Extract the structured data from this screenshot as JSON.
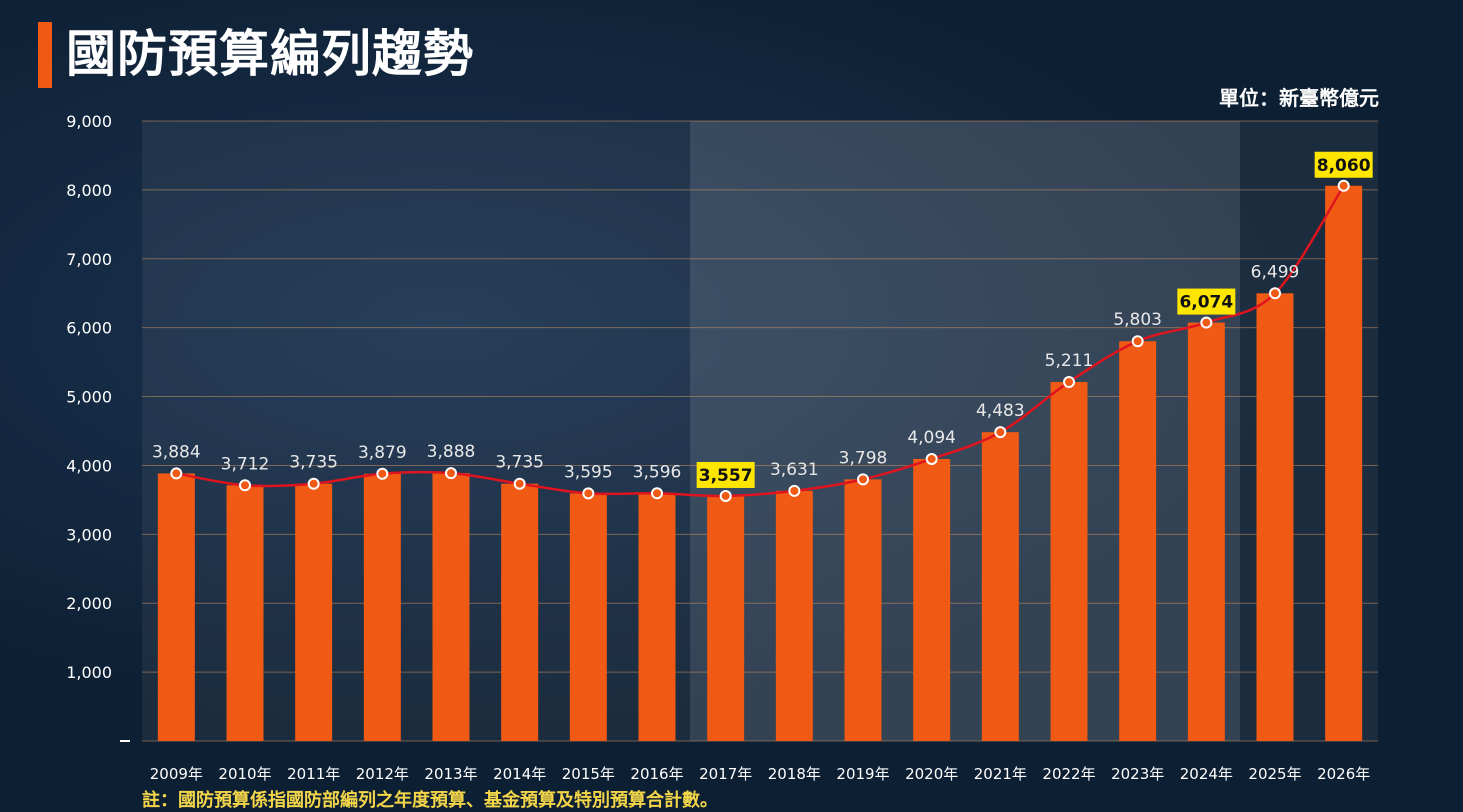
{
  "title": "國防預算編列趨勢",
  "unit": "單位：新臺幣億元",
  "note": "註：國防預算係指國防部編列之年度預算、基金預算及特別預算合計數。",
  "colors": {
    "bar": "#f05a14",
    "line": "#e0141e",
    "highlight": "#ffe600",
    "accent": "#f05a14"
  },
  "chart_data": {
    "type": "bar",
    "categories": [
      "2009年",
      "2010年",
      "2011年",
      "2012年",
      "2013年",
      "2014年",
      "2015年",
      "2016年",
      "2017年",
      "2018年",
      "2019年",
      "2020年",
      "2021年",
      "2022年",
      "2023年",
      "2024年",
      "2025年",
      "2026年"
    ],
    "values": [
      3884,
      3712,
      3735,
      3879,
      3888,
      3735,
      3595,
      3596,
      3557,
      3631,
      3798,
      4094,
      4483,
      5211,
      5803,
      6074,
      6499,
      8060
    ],
    "value_labels": [
      "3,884",
      "3,712",
      "3,735",
      "3,879",
      "3,888",
      "3,735",
      "3,595",
      "3,596",
      "3,557",
      "3,631",
      "3,798",
      "4,094",
      "4,483",
      "5,211",
      "5,803",
      "6,074",
      "6,499",
      "8,060"
    ],
    "highlighted": [
      "2017年",
      "2024年",
      "2026年"
    ],
    "overlay_line": true,
    "ylim": [
      0,
      9000
    ],
    "yticks": [
      "9,000",
      "8,000",
      "7,000",
      "6,000",
      "5,000",
      "4,000",
      "3,000",
      "2,000",
      "1,000",
      ""
    ],
    "grid": true,
    "xlabel": "",
    "ylabel": ""
  }
}
